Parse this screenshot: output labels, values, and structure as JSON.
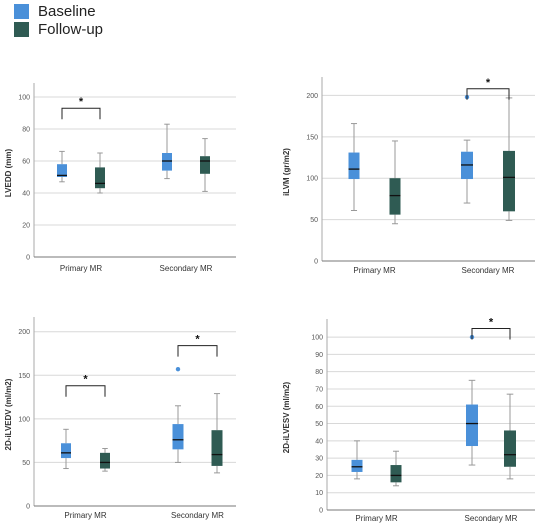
{
  "legend": {
    "items": [
      {
        "label": "Baseline",
        "color": "#4a90d9"
      },
      {
        "label": "Follow-up",
        "color": "#2f5b53"
      }
    ]
  },
  "chart_data": [
    {
      "type": "box",
      "ylabel": "LVEDD (mm)",
      "ylim": [
        0,
        105
      ],
      "yticks": [
        0,
        20,
        40,
        60,
        80,
        100
      ],
      "grid": true,
      "categories": [
        "Primary MR",
        "Secondary MR"
      ],
      "series": [
        {
          "name": "Baseline",
          "color": "#4a90d9",
          "boxes": [
            {
              "min": 47,
              "q1": 50,
              "median": 51,
              "q3": 58,
              "max": 66,
              "outliers": []
            },
            {
              "min": 49,
              "q1": 54,
              "median": 60,
              "q3": 65,
              "max": 83,
              "outliers": []
            }
          ]
        },
        {
          "name": "Follow-up",
          "color": "#2f5b53",
          "boxes": [
            {
              "min": 40,
              "q1": 43,
              "median": 46,
              "q3": 56,
              "max": 65,
              "outliers": []
            },
            {
              "min": 41,
              "q1": 52,
              "median": 60,
              "q3": 63,
              "max": 74,
              "outliers": []
            }
          ]
        }
      ],
      "significance": [
        {
          "category": 0,
          "label": "*",
          "y": 93
        }
      ]
    },
    {
      "type": "box",
      "ylabel": "iLVM (gr/m2)",
      "ylim": [
        0,
        215
      ],
      "yticks": [
        0,
        50,
        100,
        150,
        200
      ],
      "grid": true,
      "categories": [
        "Primary MR",
        "Secondary MR"
      ],
      "series": [
        {
          "name": "Baseline",
          "color": "#4a90d9",
          "boxes": [
            {
              "min": 61,
              "q1": 99,
              "median": 111,
              "q3": 131,
              "max": 166,
              "outliers": []
            },
            {
              "min": 70,
              "q1": 99,
              "median": 116,
              "q3": 132,
              "max": 146,
              "outliers": [
                198
              ]
            }
          ]
        },
        {
          "name": "Follow-up",
          "color": "#2f5b53",
          "boxes": [
            {
              "min": 45,
              "q1": 56,
              "median": 79,
              "q3": 100,
              "max": 145,
              "outliers": []
            },
            {
              "min": 49,
              "q1": 60,
              "median": 101,
              "q3": 133,
              "max": 197,
              "outliers": []
            }
          ]
        }
      ],
      "significance": [
        {
          "category": 1,
          "label": "*",
          "y": 208
        }
      ]
    },
    {
      "type": "box",
      "ylabel": "2D-iLVEDV (ml/m2)",
      "ylim": [
        0,
        210
      ],
      "yticks": [
        0,
        50,
        100,
        150,
        200
      ],
      "grid": true,
      "categories": [
        "Primary MR",
        "Secondary MR"
      ],
      "series": [
        {
          "name": "Baseline",
          "color": "#4a90d9",
          "boxes": [
            {
              "min": 43,
              "q1": 55,
              "median": 61,
              "q3": 72,
              "max": 88,
              "outliers": []
            },
            {
              "min": 50,
              "q1": 65,
              "median": 76,
              "q3": 94,
              "max": 115,
              "outliers": [
                157
              ]
            }
          ]
        },
        {
          "name": "Follow-up",
          "color": "#2f5b53",
          "boxes": [
            {
              "min": 40,
              "q1": 43,
              "median": 50,
              "q3": 61,
              "max": 66,
              "outliers": []
            },
            {
              "min": 38,
              "q1": 46,
              "median": 59,
              "q3": 87,
              "max": 129,
              "outliers": []
            }
          ]
        }
      ],
      "significance": [
        {
          "category": 0,
          "label": "*",
          "y": 138
        },
        {
          "category": 1,
          "label": "*",
          "y": 184
        }
      ]
    },
    {
      "type": "box",
      "ylabel": "2D-iLVESV (ml/m2)",
      "ylim": [
        0,
        107
      ],
      "yticks": [
        0,
        10,
        20,
        30,
        40,
        50,
        60,
        70,
        80,
        90,
        100
      ],
      "grid": true,
      "categories": [
        "Primary MR",
        "Secondary MR"
      ],
      "series": [
        {
          "name": "Baseline",
          "color": "#4a90d9",
          "boxes": [
            {
              "min": 18,
              "q1": 22,
              "median": 25,
              "q3": 29,
              "max": 40,
              "outliers": []
            },
            {
              "min": 26,
              "q1": 37,
              "median": 50,
              "q3": 61,
              "max": 75,
              "outliers": [
                100
              ]
            }
          ]
        },
        {
          "name": "Follow-up",
          "color": "#2f5b53",
          "boxes": [
            {
              "min": 14,
              "q1": 16,
              "median": 20,
              "q3": 26,
              "max": 34,
              "outliers": []
            },
            {
              "min": 18,
              "q1": 25,
              "median": 32,
              "q3": 46,
              "max": 67,
              "outliers": []
            }
          ]
        }
      ],
      "significance": [
        {
          "category": 1,
          "label": "*",
          "y": 105
        }
      ]
    }
  ]
}
